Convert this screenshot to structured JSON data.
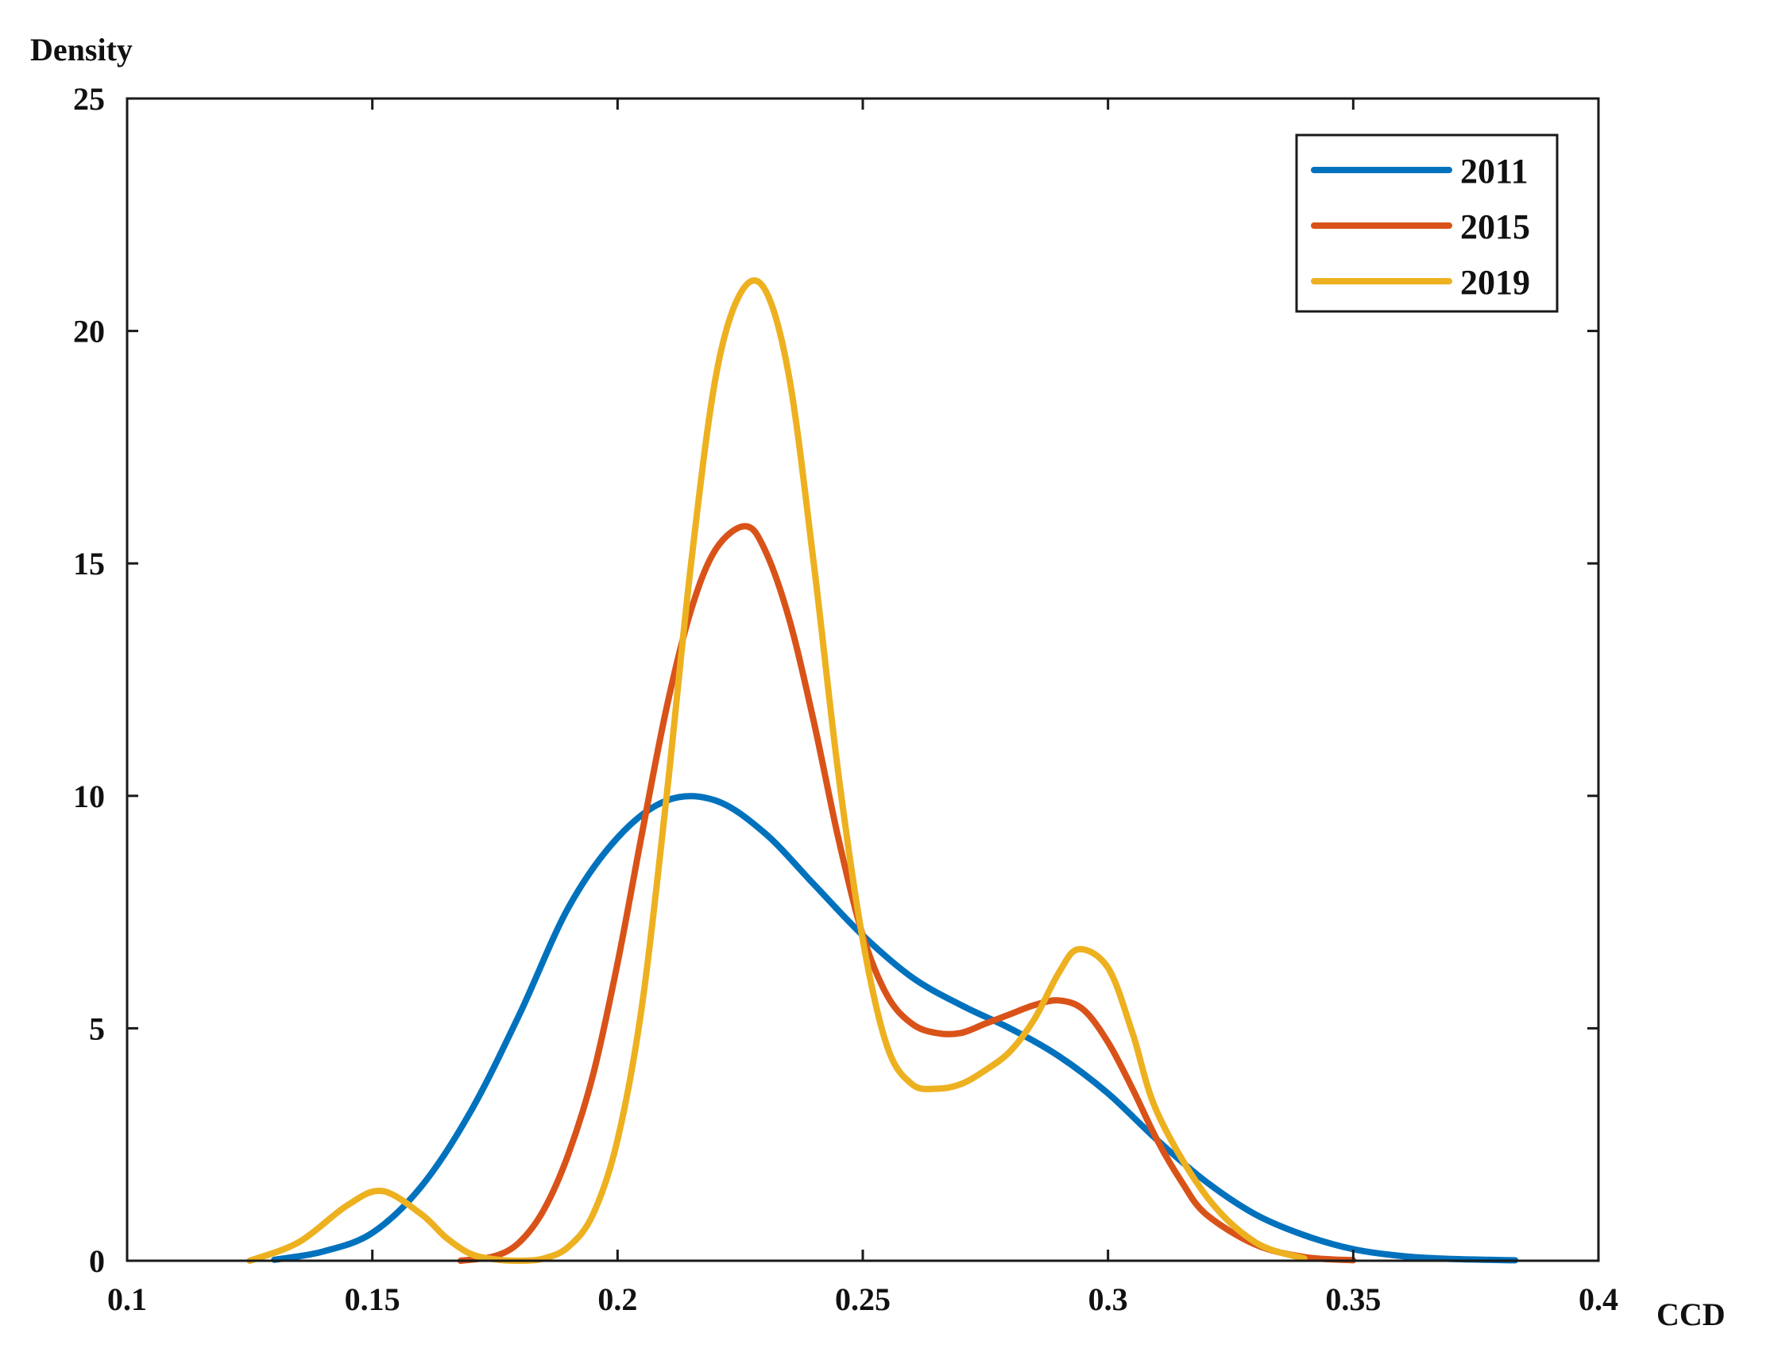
{
  "chart_data": {
    "type": "line",
    "title": "",
    "xlabel": "CCD",
    "ylabel": "Density",
    "xlim": [
      0.1,
      0.4
    ],
    "ylim": [
      0,
      25
    ],
    "xticks": [
      0.1,
      0.15,
      0.2,
      0.25,
      0.3,
      0.35,
      0.4
    ],
    "xtick_labels": [
      "0.1",
      "0.15",
      "0.2",
      "0.25",
      "0.3",
      "0.35",
      "0.4"
    ],
    "yticks": [
      0,
      5,
      10,
      15,
      20,
      25
    ],
    "ytick_labels": [
      "0",
      "5",
      "10",
      "15",
      "20",
      "25"
    ],
    "grid": false,
    "legend_position": "top-right",
    "series": [
      {
        "name": "2011",
        "color": "#0072BD",
        "x": [
          0.13,
          0.14,
          0.15,
          0.16,
          0.17,
          0.18,
          0.19,
          0.2,
          0.21,
          0.22,
          0.23,
          0.24,
          0.25,
          0.26,
          0.27,
          0.28,
          0.29,
          0.3,
          0.31,
          0.32,
          0.33,
          0.34,
          0.35,
          0.36,
          0.37,
          0.383
        ],
        "y": [
          0.02,
          0.2,
          0.6,
          1.6,
          3.2,
          5.3,
          7.6,
          9.1,
          9.9,
          9.9,
          9.2,
          8.1,
          7.0,
          6.1,
          5.5,
          5.0,
          4.4,
          3.6,
          2.6,
          1.7,
          1.0,
          0.55,
          0.25,
          0.1,
          0.04,
          0.01
        ]
      },
      {
        "name": "2015",
        "color": "#D95319",
        "x": [
          0.168,
          0.175,
          0.18,
          0.185,
          0.19,
          0.195,
          0.2,
          0.205,
          0.21,
          0.215,
          0.22,
          0.226,
          0.23,
          0.235,
          0.24,
          0.245,
          0.25,
          0.255,
          0.26,
          0.265,
          0.27,
          0.275,
          0.28,
          0.285,
          0.29,
          0.295,
          0.3,
          0.305,
          0.31,
          0.315,
          0.32,
          0.33,
          0.34,
          0.35
        ],
        "y": [
          0.0,
          0.1,
          0.4,
          1.1,
          2.3,
          4.0,
          6.4,
          9.2,
          11.9,
          14.0,
          15.3,
          15.8,
          15.3,
          13.8,
          11.6,
          9.1,
          7.0,
          5.7,
          5.1,
          4.9,
          4.9,
          5.1,
          5.3,
          5.5,
          5.6,
          5.4,
          4.7,
          3.7,
          2.6,
          1.7,
          1.0,
          0.35,
          0.08,
          0.01
        ]
      },
      {
        "name": "2019",
        "color": "#EDB120",
        "x": [
          0.125,
          0.135,
          0.145,
          0.152,
          0.16,
          0.165,
          0.17,
          0.175,
          0.18,
          0.185,
          0.19,
          0.195,
          0.2,
          0.205,
          0.21,
          0.215,
          0.22,
          0.225,
          0.23,
          0.235,
          0.24,
          0.245,
          0.25,
          0.255,
          0.26,
          0.265,
          0.27,
          0.275,
          0.28,
          0.285,
          0.29,
          0.294,
          0.3,
          0.305,
          0.31,
          0.32,
          0.33,
          0.34
        ],
        "y": [
          0.0,
          0.4,
          1.2,
          1.5,
          1.0,
          0.5,
          0.15,
          0.03,
          0.0,
          0.05,
          0.3,
          1.0,
          2.6,
          5.5,
          10.0,
          15.0,
          19.0,
          20.8,
          20.9,
          19.0,
          15.0,
          10.5,
          6.9,
          4.6,
          3.8,
          3.7,
          3.8,
          4.1,
          4.5,
          5.2,
          6.2,
          6.7,
          6.3,
          4.9,
          3.2,
          1.4,
          0.4,
          0.05
        ]
      }
    ]
  }
}
